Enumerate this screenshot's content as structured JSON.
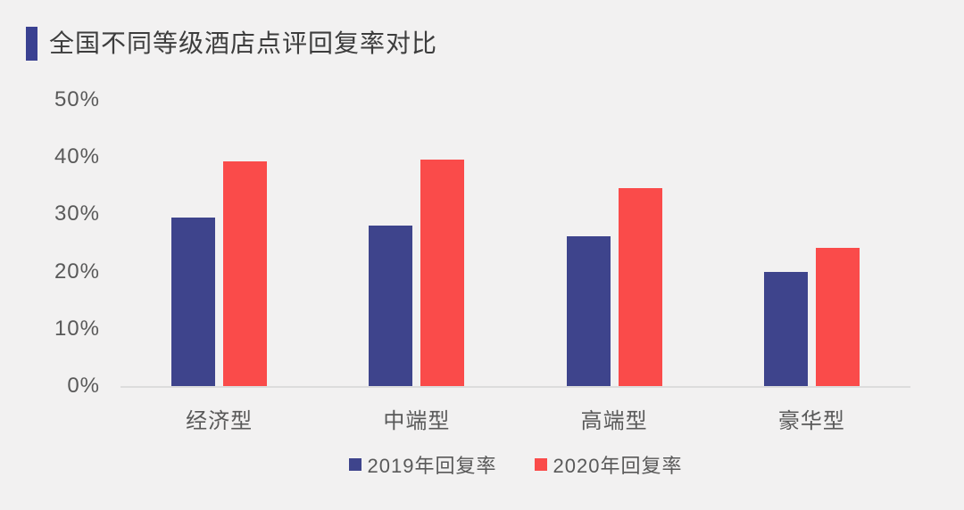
{
  "page": {
    "background_color": "#f2f1f1"
  },
  "header": {
    "accent_color": "#3a4191",
    "title": "全国不同等级酒店点评回复率对比"
  },
  "chart_data": {
    "type": "bar",
    "title": "全国不同等级酒店点评回复率对比",
    "categories": [
      "经济型",
      "中端型",
      "高端型",
      "豪华型"
    ],
    "series": [
      {
        "name": "2019年回复率",
        "color": "#3e448c",
        "values": [
          29.5,
          28.1,
          26.2,
          19.9
        ]
      },
      {
        "name": "2020年回复率",
        "color": "#fa4b4a",
        "values": [
          39.2,
          39.6,
          34.6,
          24.1
        ]
      }
    ],
    "xlabel": "",
    "ylabel": "",
    "yticks": [
      "0%",
      "10%",
      "20%",
      "30%",
      "40%",
      "50%"
    ],
    "ytick_values": [
      0,
      10,
      20,
      30,
      40,
      50
    ],
    "ylim": [
      0,
      50
    ],
    "grid": false,
    "legend_position": "bottom",
    "axis_line_color": "#dcdcdc"
  }
}
